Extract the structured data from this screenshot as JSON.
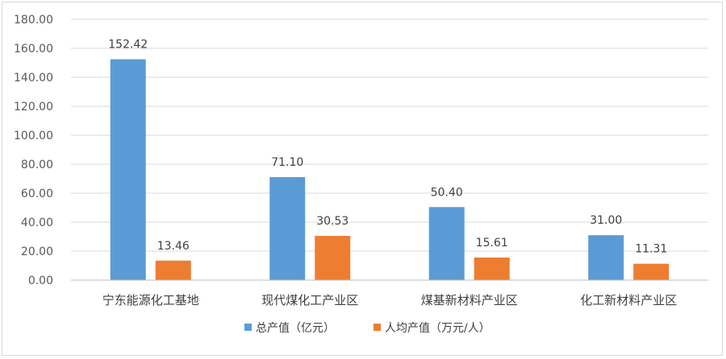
{
  "chart_data": {
    "type": "bar",
    "categories": [
      "宁东能源化工基地",
      "现代煤化工产业区",
      "煤基新材料产业区",
      "化工新材料产业区"
    ],
    "series": [
      {
        "name": "总产值（亿元）",
        "color": "#5b9bd5",
        "values": [
          152.42,
          71.1,
          50.4,
          31.0
        ],
        "labels": [
          "152.42",
          "71.10",
          "50.40",
          "31.00"
        ]
      },
      {
        "name": "人均产值（万元/人）",
        "color": "#ed7d31",
        "values": [
          13.46,
          30.53,
          15.61,
          11.31
        ],
        "labels": [
          "13.46",
          "30.53",
          "15.61",
          "11.31"
        ]
      }
    ],
    "yticks": [
      "0.00",
      "20.00",
      "40.00",
      "60.00",
      "80.00",
      "100.00",
      "120.00",
      "140.00",
      "160.00",
      "180.00"
    ],
    "ylim": [
      0,
      180
    ],
    "grid": true,
    "legend": "bottom"
  }
}
